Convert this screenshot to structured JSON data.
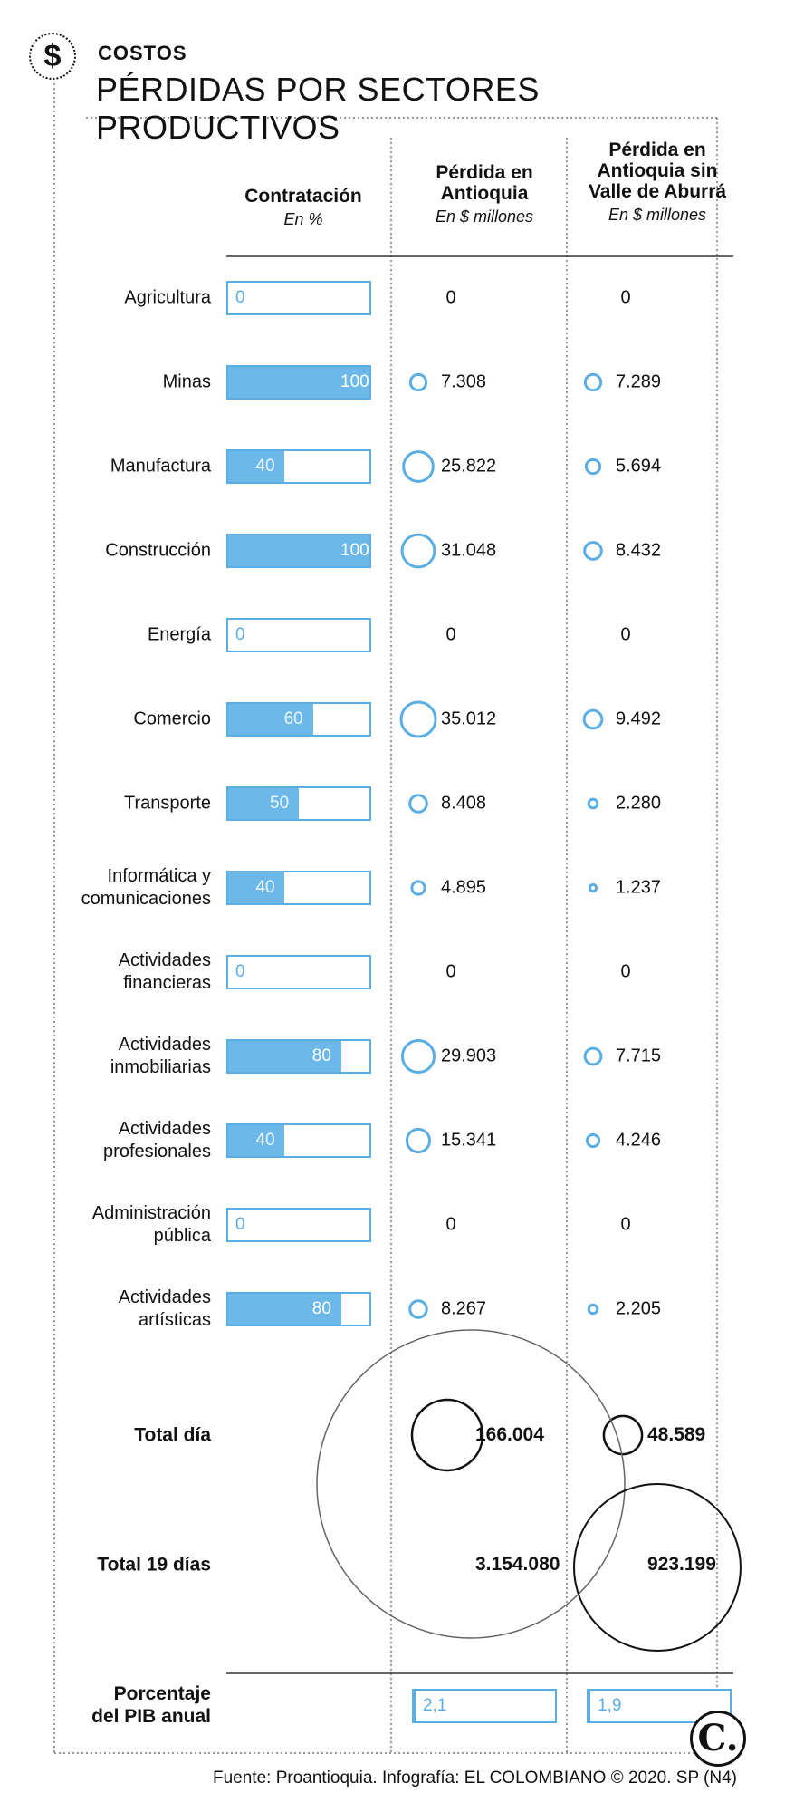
{
  "header": {
    "icon": "dollar-icon",
    "kicker": "COSTOS",
    "title": "PÉRDIDAS POR SECTORES PRODUCTIVOS"
  },
  "columns": {
    "contratacion": {
      "title": "Contratación",
      "unit": "En %"
    },
    "antioquia": {
      "title_line1": "Pérdida en",
      "title_line2": "Antioquia",
      "unit": "En $ millones"
    },
    "sin_valle": {
      "title_line1": "Pérdida en",
      "title_line2": "Antioquia sin",
      "title_line3": "Valle de Aburrá",
      "unit": "En $ millones"
    }
  },
  "colors": {
    "bar": "#6cb8e8",
    "bar_border": "#5aaee3",
    "circle": "#5aaee3",
    "text": "#111111"
  },
  "chart_data": {
    "type": "table",
    "title": "PÉRDIDAS POR SECTORES PRODUCTIVOS",
    "rows": [
      {
        "sector": [
          "Agricultura"
        ],
        "contratacion": 0,
        "contratacion_label": "0",
        "antioquia": 0,
        "antioquia_label": "0",
        "sin_valle": 0,
        "sin_valle_label": "0"
      },
      {
        "sector": [
          "Minas"
        ],
        "contratacion": 100,
        "contratacion_label": "100",
        "antioquia": 7308,
        "antioquia_label": "7.308",
        "sin_valle": 7289,
        "sin_valle_label": "7.289"
      },
      {
        "sector": [
          "Manufactura"
        ],
        "contratacion": 40,
        "contratacion_label": "40",
        "antioquia": 25822,
        "antioquia_label": "25.822",
        "sin_valle": 5694,
        "sin_valle_label": "5.694"
      },
      {
        "sector": [
          "Construcción"
        ],
        "contratacion": 100,
        "contratacion_label": "100",
        "antioquia": 31048,
        "antioquia_label": "31.048",
        "sin_valle": 8432,
        "sin_valle_label": "8.432"
      },
      {
        "sector": [
          "Energía"
        ],
        "contratacion": 0,
        "contratacion_label": "0",
        "antioquia": 0,
        "antioquia_label": "0",
        "sin_valle": 0,
        "sin_valle_label": "0"
      },
      {
        "sector": [
          "Comercio"
        ],
        "contratacion": 60,
        "contratacion_label": "60",
        "antioquia": 35012,
        "antioquia_label": "35.012",
        "sin_valle": 9492,
        "sin_valle_label": "9.492"
      },
      {
        "sector": [
          "Transporte"
        ],
        "contratacion": 50,
        "contratacion_label": "50",
        "antioquia": 8408,
        "antioquia_label": "8.408",
        "sin_valle": 2280,
        "sin_valle_label": "2.280"
      },
      {
        "sector": [
          "Informática y",
          "comunicaciones"
        ],
        "contratacion": 40,
        "contratacion_label": "40",
        "antioquia": 4895,
        "antioquia_label": "4.895",
        "sin_valle": 1237,
        "sin_valle_label": "1.237"
      },
      {
        "sector": [
          "Actividades",
          "financieras"
        ],
        "contratacion": 0,
        "contratacion_label": "0",
        "antioquia": 0,
        "antioquia_label": "0",
        "sin_valle": 0,
        "sin_valle_label": "0"
      },
      {
        "sector": [
          "Actividades",
          "inmobiliarias"
        ],
        "contratacion": 80,
        "contratacion_label": "80",
        "antioquia": 29903,
        "antioquia_label": "29.903",
        "sin_valle": 7715,
        "sin_valle_label": "7.715"
      },
      {
        "sector": [
          "Actividades",
          "profesionales"
        ],
        "contratacion": 40,
        "contratacion_label": "40",
        "antioquia": 15341,
        "antioquia_label": "15.341",
        "sin_valle": 4246,
        "sin_valle_label": "4.246"
      },
      {
        "sector": [
          "Administración",
          "pública"
        ],
        "contratacion": 0,
        "contratacion_label": "0",
        "antioquia": 0,
        "antioquia_label": "0",
        "sin_valle": 0,
        "sin_valle_label": "0"
      },
      {
        "sector": [
          "Actividades",
          "artísticas"
        ],
        "contratacion": 80,
        "contratacion_label": "80",
        "antioquia": 8267,
        "antioquia_label": "8.267",
        "sin_valle": 2205,
        "sin_valle_label": "2.205"
      }
    ],
    "totals": [
      {
        "label": [
          "Total día"
        ],
        "antioquia": 166004,
        "antioquia_label": "166.004",
        "sin_valle": 48589,
        "sin_valle_label": "48.589"
      },
      {
        "label": [
          "Total 19 días"
        ],
        "antioquia": 3154080,
        "antioquia_label": "3.154.080",
        "sin_valle": 923199,
        "sin_valle_label": "923.199"
      }
    ],
    "pib": {
      "label": [
        "Porcentaje",
        "del PIB anual"
      ],
      "antioquia": 2.1,
      "antioquia_label": "2,1",
      "sin_valle": 1.9,
      "sin_valle_label": "1,9"
    }
  },
  "footer": {
    "source": "Fuente: Proantioquia. Infografía: EL COLOMBIANO © 2020. SP (N4)",
    "logo": "C."
  }
}
